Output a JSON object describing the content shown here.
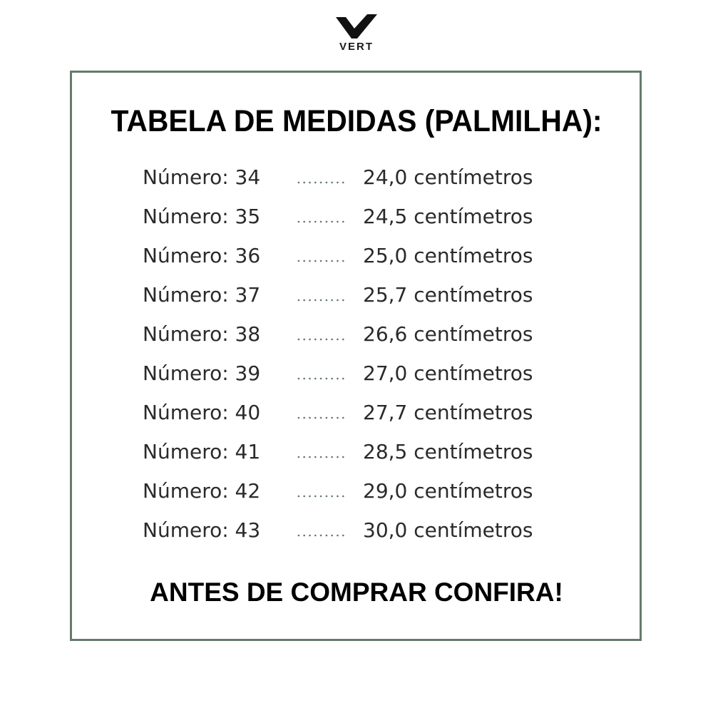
{
  "brand": {
    "logo_text": "VERT"
  },
  "title": "TABELA DE MEDIDAS (PALMILHA):",
  "rows": [
    {
      "label": "Número: 34",
      "value": "24,0 centímetros"
    },
    {
      "label": "Número: 35",
      "value": "24,5 centímetros"
    },
    {
      "label": "Número: 36",
      "value": "25,0 centímetros"
    },
    {
      "label": "Número: 37",
      "value": "25,7 centímetros"
    },
    {
      "label": "Número: 38",
      "value": "26,6 centímetros"
    },
    {
      "label": "Número: 39",
      "value": "27,0 centímetros"
    },
    {
      "label": "Número: 40",
      "value": "27,7 centímetros"
    },
    {
      "label": "Número: 41",
      "value": "28,5 centímetros"
    },
    {
      "label": "Número: 42",
      "value": "29,0 centímetros"
    },
    {
      "label": "Número: 43",
      "value": "30,0 centímetros"
    }
  ],
  "footer": "ANTES DE COMPRAR CONFIRA!",
  "colors": {
    "frame": "#667a6c",
    "dots": "#5f7566",
    "text": "#1e1e1e"
  }
}
